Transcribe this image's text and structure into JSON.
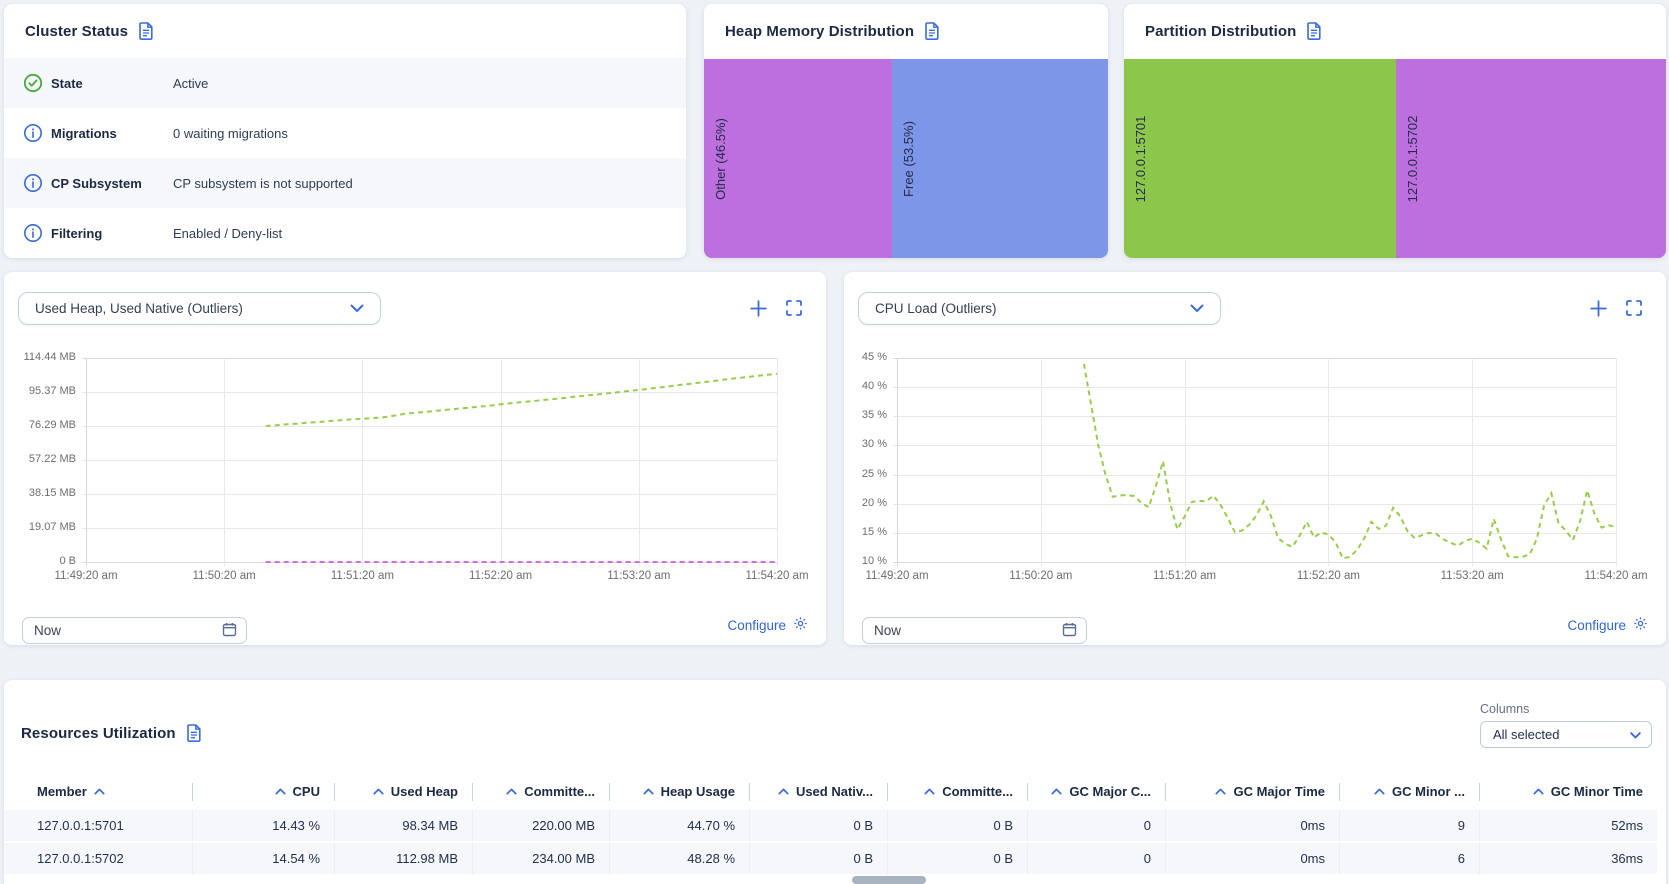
{
  "colors": {
    "accent_blue": "#3a6bd6",
    "navy": "#1b2943",
    "purple": "#bd6fde",
    "bar_blue": "#7d96e8",
    "bar_green": "#8cc64b",
    "line_green": "#99cc4d",
    "line_purple": "#cf6ee0",
    "check_green": "#47a83c"
  },
  "cluster_status": {
    "title": "Cluster Status",
    "title_icon": "document-icon",
    "rows": [
      {
        "icon": "check-circle",
        "label": "State",
        "value": "Active"
      },
      {
        "icon": "info-circle",
        "label": "Migrations",
        "value": "0 waiting migrations"
      },
      {
        "icon": "info-circle",
        "label": "CP Subsystem",
        "value": "CP subsystem is not supported"
      },
      {
        "icon": "info-circle",
        "label": "Filtering",
        "value": "Enabled / Deny-list"
      }
    ]
  },
  "heap_memory_distribution": {
    "title": "Heap Memory Distribution",
    "title_icon": "document-icon",
    "segments": [
      {
        "label": "Other (46.5%)",
        "percent": 46.5,
        "color": "#bd6fde"
      },
      {
        "label": "Free (53.5%)",
        "percent": 53.5,
        "color": "#7d96e8"
      }
    ]
  },
  "partition_distribution": {
    "title": "Partition Distribution",
    "title_icon": "document-icon",
    "segments": [
      {
        "label": "127.0.0.1:5701",
        "percent": 50.2,
        "color": "#8cc64b"
      },
      {
        "label": "127.0.0.1:5702",
        "percent": 49.8,
        "color": "#bd6fde"
      }
    ]
  },
  "charts": [
    {
      "selector": "Used Heap, Used Native (Outliers)",
      "now_label": "Now",
      "configure_label": "Configure"
    },
    {
      "selector": "CPU Load (Outliers)",
      "now_label": "Now",
      "configure_label": "Configure"
    }
  ],
  "chart_data": [
    {
      "type": "line",
      "title": "Used Heap, Used Native (Outliers)",
      "x_labels": [
        "11:49:20 am",
        "11:50:20 am",
        "11:51:20 am",
        "11:52:20 am",
        "11:53:20 am",
        "11:54:20 am"
      ],
      "y_ticks": [
        "114.44 MB",
        "95.37 MB",
        "76.29 MB",
        "57.22 MB",
        "38.15 MB",
        "19.07 MB",
        "0 B"
      ],
      "y_domain": [
        0,
        114.44
      ],
      "y_unit": "MB",
      "grid": true,
      "legend": "none",
      "series": [
        {
          "name": "Used Heap",
          "color": "#99cc4d",
          "style": "dashed",
          "x_start": 0.26,
          "values": [
            76.3,
            76.7,
            77.3,
            77.6,
            78.2,
            78.5,
            79.1,
            79.5,
            80.0,
            80.3,
            80.7,
            81.1,
            82.0,
            83.1,
            83.7,
            84.2,
            84.8,
            85.4,
            86.0,
            86.5,
            87.1,
            87.6,
            88.4,
            89.1,
            89.7,
            90.2,
            90.8,
            91.4,
            92.0,
            92.7,
            93.3,
            93.9,
            94.6,
            95.2,
            95.9,
            96.5,
            97.2,
            97.9,
            98.6,
            99.4,
            100.1,
            100.8,
            101.5,
            102.3,
            103.0,
            103.6,
            104.3,
            105.0,
            105.5
          ]
        },
        {
          "name": "Used Native",
          "color": "#cf6ee0",
          "style": "dashed",
          "x_start": 0.26,
          "values": [
            0,
            0
          ]
        }
      ]
    },
    {
      "type": "line",
      "title": "CPU Load (Outliers)",
      "x_labels": [
        "11:49:20 am",
        "11:50:20 am",
        "11:51:20 am",
        "11:52:20 am",
        "11:53:20 am",
        "11:54:20 am"
      ],
      "y_ticks": [
        "45 %",
        "40 %",
        "35 %",
        "30 %",
        "25 %",
        "20 %",
        "15 %",
        "10 %"
      ],
      "y_domain": [
        10,
        45
      ],
      "y_unit": "%",
      "grid": true,
      "legend": "none",
      "series": [
        {
          "name": "CPU Load",
          "color": "#99cc4d",
          "style": "dashed",
          "x_start": 0.26,
          "values": [
            44,
            37,
            30,
            25,
            21.2,
            21.4,
            21.5,
            21.3,
            20.1,
            19.4,
            23,
            27.3,
            20,
            15.6,
            17.8,
            20.3,
            20.5,
            20.4,
            21.4,
            19.8,
            17.6,
            15.1,
            15.4,
            16.4,
            18,
            20.4,
            17.9,
            14.1,
            13.1,
            12.6,
            14.5,
            16.9,
            14.2,
            15.1,
            14.7,
            13.4,
            10.6,
            10.9,
            12.1,
            14.1,
            16.9,
            15.7,
            16.2,
            19.3,
            17.8,
            15.3,
            14.1,
            14.6,
            15,
            14.8,
            13.9,
            13.3,
            12.8,
            13.6,
            14,
            13.3,
            12.3,
            17.4,
            13.9,
            11,
            10.8,
            10.9,
            11.3,
            14,
            19.7,
            21.8,
            16.7,
            15.4,
            13.8,
            17,
            22.3,
            18.3,
            15.9,
            16.3,
            16
          ]
        }
      ]
    }
  ],
  "resources": {
    "title": "Resources Utilization",
    "title_icon": "document-icon",
    "columns_label": "Columns",
    "columns_selected": "All selected",
    "headers": [
      {
        "label": "Member",
        "align": "left"
      },
      {
        "label": "CPU",
        "align": "right"
      },
      {
        "label": "Used Heap",
        "align": "right"
      },
      {
        "label": "Committe...",
        "align": "right"
      },
      {
        "label": "Heap Usage",
        "align": "right"
      },
      {
        "label": "Used Nativ...",
        "align": "right"
      },
      {
        "label": "Committe...",
        "align": "right"
      },
      {
        "label": "GC Major C...",
        "align": "right"
      },
      {
        "label": "GC Major Time",
        "align": "right"
      },
      {
        "label": "GC Minor ...",
        "align": "right"
      },
      {
        "label": "GC Minor Time",
        "align": "right"
      }
    ],
    "rows": [
      [
        "127.0.0.1:5701",
        "14.43 %",
        "98.34 MB",
        "220.00 MB",
        "44.70 %",
        "0 B",
        "0 B",
        "0",
        "0ms",
        "9",
        "52ms"
      ],
      [
        "127.0.0.1:5702",
        "14.54 %",
        "112.98 MB",
        "234.00 MB",
        "48.28 %",
        "0 B",
        "0 B",
        "0",
        "0ms",
        "6",
        "36ms"
      ]
    ]
  }
}
